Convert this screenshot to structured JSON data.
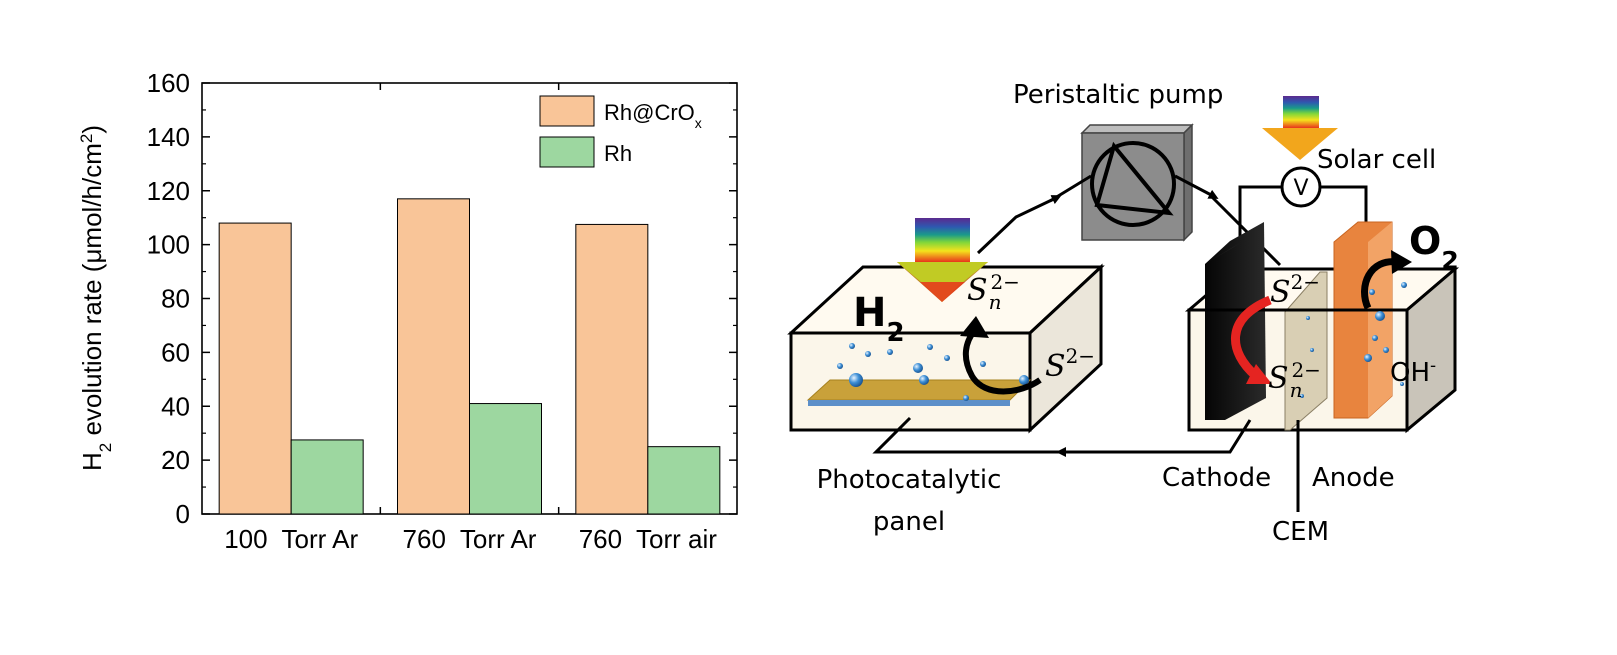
{
  "chart_data": {
    "type": "bar",
    "categories": [
      "100  Torr Ar",
      "760  Torr Ar",
      "760  Torr air"
    ],
    "series": [
      {
        "name": "Rh@CrO",
        "name_sub": "x",
        "color": "#f9c598",
        "values": [
          108,
          117,
          107.5
        ]
      },
      {
        "name": "Rh",
        "name_sub": "",
        "color": "#9dd7a0",
        "values": [
          27.5,
          41,
          25
        ]
      }
    ],
    "ylabel": {
      "pre": "H",
      "sub": "2",
      "mid": " evolution rate (μmol/h/cm",
      "sup": "2",
      "post": ")"
    },
    "yticks": [
      "0",
      "20",
      "40",
      "60",
      "80",
      "100",
      "120",
      "140",
      "160"
    ],
    "ylim": [
      0,
      160
    ],
    "legend_position": "top-right",
    "grid": false
  },
  "diagram": {
    "pump_label": "Peristaltic pump",
    "solar_cell_label": "Solar cell",
    "voltmeter_label": "V",
    "h2_label": {
      "main": "H",
      "sub": "2"
    },
    "o2_label": {
      "main": "O",
      "sub": "2"
    },
    "panel_sn": {
      "base": "S",
      "sub": "n",
      "sup": "2−"
    },
    "panel_s": {
      "base": "S",
      "sup": "2−"
    },
    "cell_s": {
      "base": "S",
      "sup": "2−"
    },
    "cell_sn": {
      "base": "S",
      "sub": "n",
      "sup": "2−"
    },
    "oh_label": {
      "main": "OH",
      "sup": "-"
    },
    "panel_label_line1": "Photocatalytic",
    "panel_label_line2": "panel",
    "cathode_label": "Cathode",
    "anode_label": "Anode",
    "cem_label": "CEM"
  }
}
